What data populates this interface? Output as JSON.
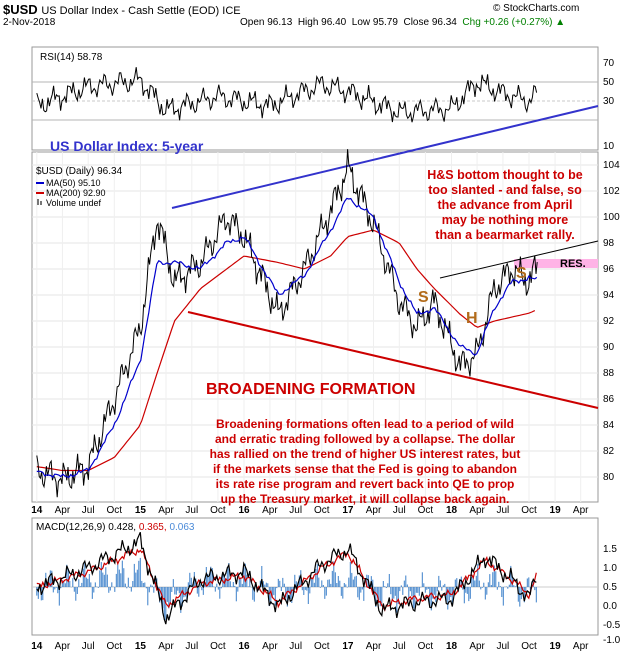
{
  "header": {
    "symbol": "$USD",
    "name": "US Dollar Index - Cash Settle (EOD) ICE",
    "source": "© StockCharts.com",
    "date": "2-Nov-2018",
    "open": "Open 96.13",
    "high": "High 96.40",
    "low": "Low 95.79",
    "close": "Close 96.34",
    "chg": "Chg +0.26 (+0.27%)",
    "chg_icon": "triangle-up-icon",
    "chg_color": "#008000"
  },
  "rsi_panel": {
    "label": "RSI(14) 58.78",
    "ticks": [
      "70",
      "50",
      "30",
      "10"
    ]
  },
  "price_panel": {
    "title": "US Dollar Index: 5-year",
    "legend": [
      {
        "text": "$USD (Daily) 96.34",
        "color": "#000000"
      },
      {
        "text": "MA(50) 95.10",
        "color": "#0000cc"
      },
      {
        "text": "MA(200) 92.90",
        "color": "#cc0000"
      },
      {
        "text": "Volume undef",
        "color": "#555555"
      }
    ],
    "ticks": [
      "104",
      "102",
      "100",
      "98",
      "96",
      "94",
      "92",
      "90",
      "88",
      "86",
      "84",
      "82",
      "80"
    ],
    "hs_note": [
      "H&S bottom thought to be",
      "too slanted - and false, so",
      "the advance from April",
      "may be nothing more",
      "than a bearmarket rally."
    ],
    "formation_title": "BROADENING FORMATION",
    "broadening_note": [
      "Broadening formations often lead to a period of wild",
      "and erratic trading followed by a collapse. The dollar",
      "has rallied on the trend of higher US interest rates, but",
      "if the markets sense that the Fed is going to abandon",
      "its rate rise program and revert back into QE to prop",
      "up the Treasury market, it will collapse back again."
    ],
    "label_s_left": "S",
    "label_h": "H",
    "label_s_right": "S",
    "label_res": "RES.",
    "accent_colors": {
      "note": "#cc0000",
      "formation": "#cc0000",
      "title": "#3333cc",
      "hs": "#b26b1a",
      "res_band": "#ffb3e6"
    }
  },
  "macd_panel": {
    "label_prefix": "MACD(12,26,9) 0.428,",
    "label_signal": "0.365,",
    "label_hist": "0.063",
    "ticks": [
      "1.5",
      "1.0",
      "0.5",
      "0.0",
      "-0.5",
      "-1.0"
    ]
  },
  "x_axis": {
    "labels": [
      "14",
      "Apr",
      "Jul",
      "Oct",
      "15",
      "Apr",
      "Jul",
      "Oct",
      "16",
      "Apr",
      "Jul",
      "Oct",
      "17",
      "Apr",
      "Jul",
      "Oct",
      "18",
      "Apr",
      "Jul",
      "Oct",
      "19",
      "Apr"
    ]
  },
  "chart_data": [
    {
      "type": "line",
      "title": "RSI(14) 58.78",
      "ylim": [
        10,
        90
      ],
      "reference_lines": [
        30,
        50,
        70
      ],
      "x": [
        "2014-01",
        "2014-07",
        "2015-01",
        "2015-04",
        "2015-10",
        "2016-04",
        "2016-10",
        "2017-01",
        "2017-07",
        "2018-01",
        "2018-04",
        "2018-07",
        "2018-10",
        "2018-11"
      ],
      "values": [
        45,
        65,
        72,
        40,
        55,
        45,
        68,
        60,
        38,
        42,
        70,
        58,
        50,
        58.78
      ]
    },
    {
      "type": "line",
      "title": "US Dollar Index: 5-year",
      "ylim": [
        78,
        105
      ],
      "x": [
        "2014-01",
        "2014-04",
        "2014-07",
        "2014-10",
        "2015-01",
        "2015-03",
        "2015-05",
        "2015-08",
        "2015-11",
        "2016-01",
        "2016-05",
        "2016-08",
        "2016-11",
        "2017-01",
        "2017-04",
        "2017-07",
        "2017-09",
        "2017-11",
        "2018-02",
        "2018-04",
        "2018-06",
        "2018-08",
        "2018-10",
        "2018-11"
      ],
      "series": [
        {
          "name": "$USD (Daily) 96.34",
          "values": [
            80.5,
            79.8,
            80.8,
            86.0,
            91.5,
            100.0,
            95.0,
            96.5,
            100.0,
            98.5,
            92.5,
            96.0,
            100.5,
            103.8,
            99.5,
            93.5,
            91.5,
            93.5,
            88.5,
            89.5,
            94.5,
            96.0,
            95.0,
            96.34
          ]
        },
        {
          "name": "MA(50) 95.10",
          "values": [
            80.4,
            80.0,
            80.5,
            84.0,
            89.0,
            96.5,
            96.5,
            96.0,
            98.0,
            98.5,
            94.0,
            95.5,
            99.0,
            101.5,
            100.0,
            95.0,
            92.5,
            93.0,
            90.0,
            89.5,
            93.0,
            95.0,
            95.3,
            95.1
          ]
        },
        {
          "name": "MA(200) 92.90",
          "values": [
            80.8,
            80.5,
            80.5,
            81.5,
            84.0,
            88.0,
            92.0,
            94.5,
            96.0,
            97.0,
            96.5,
            96.0,
            97.0,
            98.5,
            99.0,
            98.0,
            96.0,
            94.5,
            92.5,
            91.5,
            92.0,
            92.3,
            92.6,
            92.9
          ]
        }
      ]
    },
    {
      "type": "line",
      "title": "MACD(12,26,9)",
      "ylim": [
        -1.0,
        1.5
      ],
      "x": [
        "2014-01",
        "2014-07",
        "2015-01",
        "2015-04",
        "2015-08",
        "2016-01",
        "2016-05",
        "2016-10",
        "2017-01",
        "2017-05",
        "2017-09",
        "2018-01",
        "2018-05",
        "2018-08",
        "2018-10",
        "2018-11"
      ],
      "series": [
        {
          "name": "MACD",
          "values": [
            0.0,
            0.5,
            1.2,
            -0.8,
            0.2,
            0.4,
            -0.5,
            0.6,
            1.0,
            -0.6,
            -0.4,
            -0.3,
            0.8,
            0.2,
            -0.3,
            0.428
          ]
        },
        {
          "name": "Signal",
          "values": [
            0.0,
            0.4,
            1.0,
            -0.5,
            0.1,
            0.3,
            -0.4,
            0.5,
            0.9,
            -0.5,
            -0.3,
            -0.2,
            0.7,
            0.2,
            -0.2,
            0.365
          ]
        }
      ]
    }
  ]
}
